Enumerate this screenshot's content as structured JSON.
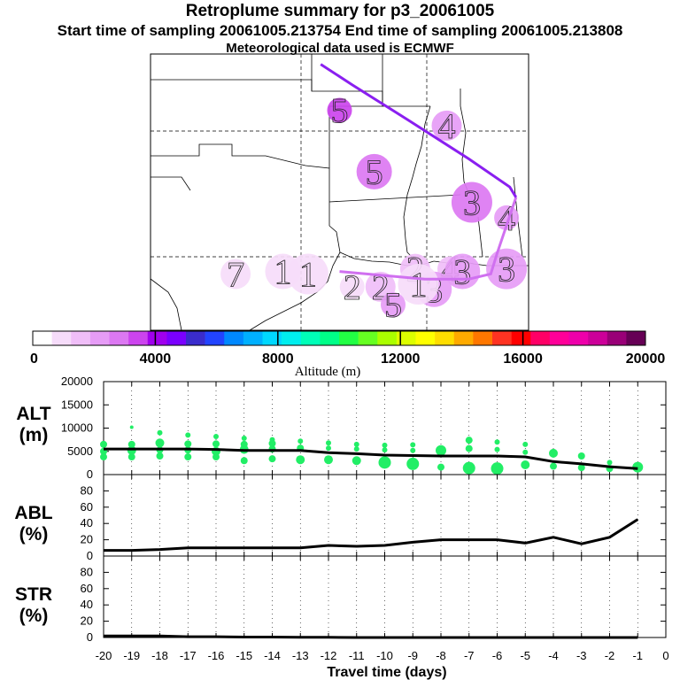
{
  "titles": {
    "title": "Retroplume summary for p3_20061005",
    "subtitle": "Start time of sampling 20061005.213754     End time of sampling 20061005.213808",
    "met_line": "Meteorological data used is ECMWF"
  },
  "colors": {
    "trajectory_north": "#8a1ff0",
    "trajectory_south": "#d070f0",
    "alt_points": "#22ee66",
    "line": "#000000"
  },
  "map": {
    "plume_markers": [
      {
        "label": "5",
        "alt_m": 3200,
        "lon": -97.0,
        "lat": 36.6
      },
      {
        "label": "4",
        "alt_m": 2000,
        "lon": -93.6,
        "lat": 36.0
      },
      {
        "label": "5",
        "alt_m": 2600,
        "lon": -95.9,
        "lat": 34.2
      },
      {
        "label": "3",
        "alt_m": 2800,
        "lon": -92.8,
        "lat": 33.0
      },
      {
        "label": "4",
        "alt_m": 2400,
        "lon": -91.7,
        "lat": 32.4
      },
      {
        "label": "7",
        "alt_m": 1200,
        "lon": -100.3,
        "lat": 30.2
      },
      {
        "label": "1",
        "alt_m": 1000,
        "lon": -98.8,
        "lat": 30.3
      },
      {
        "label": "1",
        "alt_m": 1000,
        "lon": -98.0,
        "lat": 30.2
      },
      {
        "label": "4",
        "alt_m": 1800,
        "lon": -93.5,
        "lat": 30.4
      },
      {
        "label": "2",
        "alt_m": 1800,
        "lon": -94.6,
        "lat": 30.4
      },
      {
        "label": "3",
        "alt_m": 2000,
        "lon": -93.1,
        "lat": 30.3
      },
      {
        "label": "3",
        "alt_m": 2000,
        "lon": -91.7,
        "lat": 30.4
      },
      {
        "label": "2",
        "alt_m": 1000,
        "lon": -96.6,
        "lat": 29.7
      },
      {
        "label": "2",
        "alt_m": 1400,
        "lon": -95.7,
        "lat": 29.7
      },
      {
        "label": "3",
        "alt_m": 2000,
        "lon": -94.0,
        "lat": 29.6
      },
      {
        "label": "1",
        "alt_m": 1200,
        "lon": -94.5,
        "lat": 29.8
      },
      {
        "label": "5",
        "alt_m": 2200,
        "lon": -95.3,
        "lat": 29.0
      }
    ],
    "trajectory_north": [
      [
        -97.6,
        38.4
      ],
      [
        -96.6,
        37.6
      ],
      [
        -94.8,
        36.2
      ],
      [
        -92.9,
        34.7
      ],
      [
        -91.6,
        33.6
      ],
      [
        -91.4,
        33.2
      ]
    ],
    "trajectory_south": [
      [
        -97.0,
        30.3
      ],
      [
        -94.3,
        30.0
      ],
      [
        -92.9,
        30.0
      ],
      [
        -92.2,
        30.2
      ],
      [
        -92.0,
        31.0
      ],
      [
        -91.4,
        33.2
      ]
    ]
  },
  "colorbar": {
    "xlabel": "Altitude (m)",
    "ticks": [
      "0",
      "4000",
      "8000",
      "12000",
      "16000",
      "20000"
    ],
    "colors": [
      "#ffffff",
      "#f6dcfa",
      "#f0bef8",
      "#e69cf6",
      "#dc78f2",
      "#cc44ee",
      "#a000ee",
      "#7a00ff",
      "#3a2ccc",
      "#2244ff",
      "#0088ff",
      "#00b0ff",
      "#00d8ff",
      "#00eeee",
      "#00ffb8",
      "#00ff88",
      "#22ff44",
      "#66ff22",
      "#aaff00",
      "#ddff00",
      "#ffff00",
      "#ffdd00",
      "#ffaa00",
      "#ff7700",
      "#ff3322",
      "#ff0000",
      "#ff0066",
      "#ff0099",
      "#ee00aa",
      "#cc0099",
      "#990077",
      "#660055"
    ]
  },
  "chart_data": [
    {
      "type": "scatter",
      "panel_label": "ALT\n(m)",
      "panel_label_lines": [
        "ALT",
        "(m)"
      ],
      "title": "",
      "xlabel": "Travel time (days)",
      "ylabel": "ALT (m)",
      "xlim": [
        -20,
        0
      ],
      "ylim": [
        0,
        20000
      ],
      "yticks": [
        "0",
        "5000",
        "10000",
        "15000",
        "20000"
      ],
      "xticks": [
        "-20",
        "-19",
        "-18",
        "-17",
        "-16",
        "-15",
        "-14",
        "-13",
        "-12",
        "-11",
        "-10",
        "-9",
        "-8",
        "-7",
        "-6",
        "-5",
        "-4",
        "-3",
        "-2",
        "-1",
        "0"
      ],
      "mean_line": {
        "x": [
          -20,
          -19,
          -18,
          -17,
          -16,
          -15,
          -14,
          -13,
          -12,
          -11,
          -10,
          -9,
          -8,
          -7,
          -6,
          -5,
          -4,
          -3,
          -2,
          -1
        ],
        "y": [
          5500,
          5500,
          5500,
          5500,
          5400,
          5200,
          5200,
          5200,
          4700,
          4500,
          4200,
          4100,
          4000,
          4000,
          4000,
          3800,
          2800,
          2300,
          1700,
          1300
        ]
      },
      "points": [
        {
          "x": -20,
          "y": 6500,
          "s": 4
        },
        {
          "x": -20,
          "y": 5000,
          "s": 4
        },
        {
          "x": -20,
          "y": 3800,
          "s": 4
        },
        {
          "x": -19,
          "y": 10200,
          "s": 2
        },
        {
          "x": -19,
          "y": 6500,
          "s": 4
        },
        {
          "x": -19,
          "y": 5200,
          "s": 5
        },
        {
          "x": -19,
          "y": 3800,
          "s": 4
        },
        {
          "x": -18,
          "y": 9000,
          "s": 3
        },
        {
          "x": -18,
          "y": 6800,
          "s": 5
        },
        {
          "x": -18,
          "y": 5300,
          "s": 4
        },
        {
          "x": -18,
          "y": 4000,
          "s": 4
        },
        {
          "x": -17,
          "y": 8500,
          "s": 3
        },
        {
          "x": -17,
          "y": 6600,
          "s": 4
        },
        {
          "x": -17,
          "y": 5300,
          "s": 4
        },
        {
          "x": -17,
          "y": 3800,
          "s": 4
        },
        {
          "x": -16,
          "y": 8200,
          "s": 3
        },
        {
          "x": -16,
          "y": 6600,
          "s": 4
        },
        {
          "x": -16,
          "y": 5000,
          "s": 5
        },
        {
          "x": -16,
          "y": 3800,
          "s": 4
        },
        {
          "x": -15,
          "y": 7800,
          "s": 3
        },
        {
          "x": -15,
          "y": 6500,
          "s": 4
        },
        {
          "x": -15,
          "y": 5400,
          "s": 5
        },
        {
          "x": -15,
          "y": 3000,
          "s": 4
        },
        {
          "x": -14,
          "y": 7500,
          "s": 3
        },
        {
          "x": -14,
          "y": 6700,
          "s": 4
        },
        {
          "x": -14,
          "y": 5500,
          "s": 4
        },
        {
          "x": -14,
          "y": 3400,
          "s": 4
        },
        {
          "x": -13,
          "y": 7200,
          "s": 3
        },
        {
          "x": -13,
          "y": 5700,
          "s": 4
        },
        {
          "x": -13,
          "y": 3200,
          "s": 5
        },
        {
          "x": -12,
          "y": 6800,
          "s": 3
        },
        {
          "x": -12,
          "y": 5700,
          "s": 3
        },
        {
          "x": -12,
          "y": 3200,
          "s": 5
        },
        {
          "x": -11,
          "y": 6500,
          "s": 3
        },
        {
          "x": -11,
          "y": 5500,
          "s": 3
        },
        {
          "x": -11,
          "y": 3000,
          "s": 5
        },
        {
          "x": -10,
          "y": 6300,
          "s": 3
        },
        {
          "x": -10,
          "y": 5300,
          "s": 3
        },
        {
          "x": -10,
          "y": 2600,
          "s": 7
        },
        {
          "x": -9,
          "y": 6400,
          "s": 3
        },
        {
          "x": -9,
          "y": 5200,
          "s": 3
        },
        {
          "x": -9,
          "y": 2300,
          "s": 7
        },
        {
          "x": -8,
          "y": 5200,
          "s": 6
        },
        {
          "x": -8,
          "y": 1600,
          "s": 4
        },
        {
          "x": -7,
          "y": 7400,
          "s": 4
        },
        {
          "x": -7,
          "y": 5600,
          "s": 4
        },
        {
          "x": -7,
          "y": 1400,
          "s": 7
        },
        {
          "x": -6,
          "y": 7000,
          "s": 3
        },
        {
          "x": -6,
          "y": 5400,
          "s": 3
        },
        {
          "x": -6,
          "y": 1300,
          "s": 7
        },
        {
          "x": -5,
          "y": 6500,
          "s": 3
        },
        {
          "x": -5,
          "y": 4800,
          "s": 3
        },
        {
          "x": -5,
          "y": 2100,
          "s": 5
        },
        {
          "x": -4,
          "y": 4600,
          "s": 5
        },
        {
          "x": -4,
          "y": 1800,
          "s": 4
        },
        {
          "x": -3,
          "y": 4000,
          "s": 4
        },
        {
          "x": -3,
          "y": 1500,
          "s": 4
        },
        {
          "x": -2,
          "y": 2600,
          "s": 3
        },
        {
          "x": -2,
          "y": 1300,
          "s": 4
        },
        {
          "x": -1,
          "y": 1600,
          "s": 6
        }
      ]
    },
    {
      "type": "line",
      "panel_label_lines": [
        "ABL",
        "(%)"
      ],
      "title": "",
      "xlabel": "Travel time (days)",
      "ylabel": "ABL (%)",
      "xlim": [
        -20,
        0
      ],
      "ylim": [
        0,
        100
      ],
      "yticks": [
        "0",
        "20",
        "40",
        "60",
        "80"
      ],
      "x": [
        -20,
        -19,
        -18,
        -17,
        -16,
        -15,
        -14,
        -13,
        -12,
        -11,
        -10,
        -9,
        -8,
        -7,
        -6,
        -5,
        -4,
        -3,
        -2,
        -1
      ],
      "values": [
        7,
        7,
        8,
        10,
        10,
        10,
        10,
        10,
        13,
        12,
        13,
        17,
        20,
        20,
        20,
        16,
        23,
        15,
        23,
        45
      ]
    },
    {
      "type": "line",
      "panel_label_lines": [
        "STR",
        "(%)"
      ],
      "title": "",
      "xlabel": "Travel time (days)",
      "ylabel": "STR (%)",
      "xlim": [
        -20,
        0
      ],
      "ylim": [
        0,
        100
      ],
      "yticks": [
        "0",
        "20",
        "40",
        "60",
        "80"
      ],
      "x": [
        -20,
        -19,
        -18,
        -17,
        -16,
        -15,
        -14,
        -13,
        -12,
        -11,
        -10,
        -9,
        -8,
        -7,
        -6,
        -5,
        -4,
        -3,
        -2,
        -1
      ],
      "values": [
        2,
        2,
        2,
        1,
        1,
        0.5,
        0.5,
        0.3,
        0.2,
        0,
        0,
        0,
        0,
        0,
        0,
        0,
        0,
        0,
        0,
        0
      ]
    }
  ]
}
